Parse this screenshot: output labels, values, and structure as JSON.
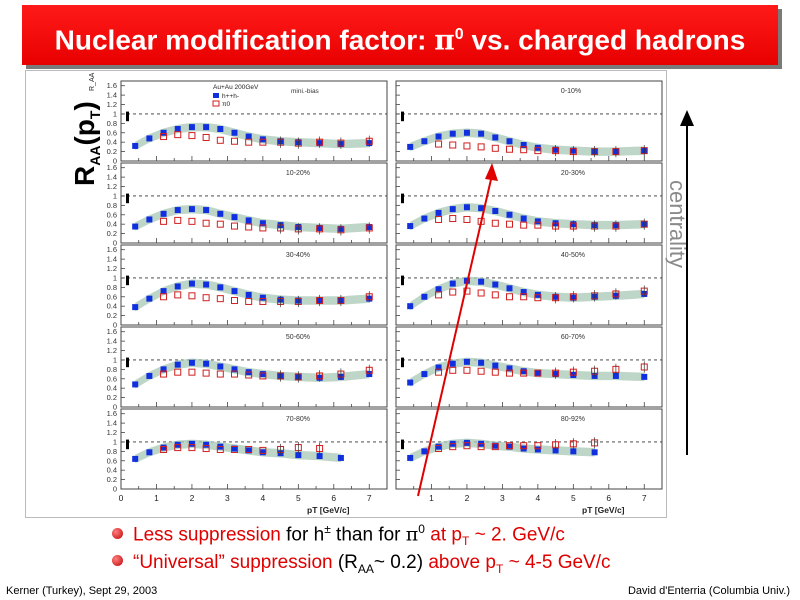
{
  "title": {
    "prefix": "Nuclear modification factor: ",
    "pi": "π",
    "pi_sup": "0",
    "suffix": " vs. charged hadrons"
  },
  "side_label": {
    "main": "R",
    "sub": "AA",
    "paren_open": "(p",
    "sub2": "T",
    "paren_close": ")"
  },
  "centrality_label": "centrality",
  "bullets": [
    {
      "red1": "Less suppression",
      "t1": " for h",
      "h_sup": "±",
      "t2": " than for ",
      "pi": "π",
      "pi_sup": "0",
      "red2": " at p",
      "red2_sub": "T",
      "red3": " ~ 2. GeV/c"
    },
    {
      "red1": "“Universal” suppression",
      "t1": " (R",
      "t1_sub": "AA",
      "t2": "~ 0.2) ",
      "red2": "above p",
      "red2_sub": "T",
      "red3": " ~ 4-5 GeV/c"
    }
  ],
  "footer": {
    "left": "Kerner (Turkey), Sept 29, 2003",
    "right": "David d'Enterria (Columbia Univ.)"
  },
  "colors": {
    "banner": "#ff0000",
    "accent_red": "#e00000",
    "charged": "#1030e0",
    "pi0": "#d02020",
    "band": "#a8c8b4"
  },
  "chart_data": {
    "type": "scatter",
    "legend": {
      "header": "Au+Au 200GeV",
      "entries": [
        "h++h-",
        "π0"
      ]
    },
    "ylabel": "R_AA",
    "xlabel": "pT [GeV/c]",
    "xlim": [
      0,
      7.5
    ],
    "ylim": [
      0,
      1.7
    ],
    "x_ticks": [
      "0",
      "1",
      "2",
      "3",
      "4",
      "5",
      "6",
      "7"
    ],
    "x_ticks_right": [
      "1",
      "2",
      "3",
      "4",
      "5",
      "6",
      "7"
    ],
    "y_ticks": [
      "0",
      "0.2",
      "0.4",
      "0.6",
      "0.8",
      "1",
      "1.2",
      "1.4",
      "1.6"
    ],
    "first_panel_extra": "mini.-bias",
    "panels": [
      {
        "label": "",
        "scale_ref": false,
        "charged": [
          [
            0.4,
            0.32
          ],
          [
            0.8,
            0.48
          ],
          [
            1.2,
            0.6
          ],
          [
            1.6,
            0.68
          ],
          [
            2.0,
            0.72
          ],
          [
            2.4,
            0.72
          ],
          [
            2.8,
            0.68
          ],
          [
            3.2,
            0.6
          ],
          [
            3.6,
            0.52
          ],
          [
            4.0,
            0.46
          ],
          [
            4.5,
            0.42
          ],
          [
            5.0,
            0.4
          ],
          [
            5.6,
            0.38
          ],
          [
            6.2,
            0.36
          ],
          [
            7.0,
            0.38
          ]
        ],
        "pi0": [
          [
            1.2,
            0.52
          ],
          [
            1.6,
            0.56
          ],
          [
            2.0,
            0.54
          ],
          [
            2.4,
            0.5
          ],
          [
            2.8,
            0.44
          ],
          [
            3.2,
            0.42
          ],
          [
            3.6,
            0.4
          ],
          [
            4.0,
            0.4
          ],
          [
            4.5,
            0.4
          ],
          [
            5.0,
            0.38
          ],
          [
            5.6,
            0.4
          ],
          [
            6.2,
            0.38
          ],
          [
            7.0,
            0.42
          ]
        ]
      },
      {
        "label": "0-10%",
        "scale_ref": false,
        "charged": [
          [
            0.4,
            0.3
          ],
          [
            0.8,
            0.42
          ],
          [
            1.2,
            0.52
          ],
          [
            1.6,
            0.58
          ],
          [
            2.0,
            0.6
          ],
          [
            2.4,
            0.58
          ],
          [
            2.8,
            0.5
          ],
          [
            3.2,
            0.42
          ],
          [
            3.6,
            0.34
          ],
          [
            4.0,
            0.28
          ],
          [
            4.5,
            0.24
          ],
          [
            5.0,
            0.22
          ],
          [
            5.6,
            0.2
          ],
          [
            6.2,
            0.2
          ],
          [
            7.0,
            0.22
          ]
        ],
        "pi0": [
          [
            1.2,
            0.36
          ],
          [
            1.6,
            0.34
          ],
          [
            2.0,
            0.32
          ],
          [
            2.4,
            0.3
          ],
          [
            2.8,
            0.27
          ],
          [
            3.2,
            0.25
          ],
          [
            3.6,
            0.24
          ],
          [
            4.0,
            0.22
          ],
          [
            4.5,
            0.22
          ],
          [
            5.0,
            0.2
          ],
          [
            5.6,
            0.2
          ],
          [
            6.2,
            0.2
          ],
          [
            7.0,
            0.22
          ]
        ]
      },
      {
        "label": "10-20%",
        "scale_ref": true,
        "charged": [
          [
            0.4,
            0.35
          ],
          [
            0.8,
            0.5
          ],
          [
            1.2,
            0.62
          ],
          [
            1.6,
            0.7
          ],
          [
            2.0,
            0.72
          ],
          [
            2.4,
            0.7
          ],
          [
            2.8,
            0.62
          ],
          [
            3.2,
            0.55
          ],
          [
            3.6,
            0.48
          ],
          [
            4.0,
            0.42
          ],
          [
            4.5,
            0.38
          ],
          [
            5.0,
            0.34
          ],
          [
            5.6,
            0.32
          ],
          [
            6.2,
            0.3
          ],
          [
            7.0,
            0.34
          ]
        ],
        "pi0": [
          [
            1.2,
            0.46
          ],
          [
            1.6,
            0.48
          ],
          [
            2.0,
            0.46
          ],
          [
            2.4,
            0.42
          ],
          [
            2.8,
            0.4
          ],
          [
            3.2,
            0.36
          ],
          [
            3.6,
            0.34
          ],
          [
            4.0,
            0.32
          ],
          [
            4.5,
            0.32
          ],
          [
            5.0,
            0.3
          ],
          [
            5.6,
            0.3
          ],
          [
            6.2,
            0.28
          ],
          [
            7.0,
            0.32
          ]
        ]
      },
      {
        "label": "20-30%",
        "scale_ref": false,
        "charged": [
          [
            0.4,
            0.36
          ],
          [
            0.8,
            0.52
          ],
          [
            1.2,
            0.64
          ],
          [
            1.6,
            0.72
          ],
          [
            2.0,
            0.76
          ],
          [
            2.4,
            0.74
          ],
          [
            2.8,
            0.68
          ],
          [
            3.2,
            0.6
          ],
          [
            3.6,
            0.52
          ],
          [
            4.0,
            0.46
          ],
          [
            4.5,
            0.42
          ],
          [
            5.0,
            0.4
          ],
          [
            5.6,
            0.38
          ],
          [
            6.2,
            0.38
          ],
          [
            7.0,
            0.4
          ]
        ],
        "pi0": [
          [
            1.2,
            0.5
          ],
          [
            1.6,
            0.52
          ],
          [
            2.0,
            0.5
          ],
          [
            2.4,
            0.46
          ],
          [
            2.8,
            0.42
          ],
          [
            3.2,
            0.4
          ],
          [
            3.6,
            0.38
          ],
          [
            4.0,
            0.38
          ],
          [
            4.5,
            0.36
          ],
          [
            5.0,
            0.36
          ],
          [
            5.6,
            0.36
          ],
          [
            6.2,
            0.36
          ],
          [
            7.0,
            0.4
          ]
        ]
      },
      {
        "label": "30-40%",
        "scale_ref": true,
        "charged": [
          [
            0.4,
            0.38
          ],
          [
            0.8,
            0.56
          ],
          [
            1.2,
            0.72
          ],
          [
            1.6,
            0.82
          ],
          [
            2.0,
            0.88
          ],
          [
            2.4,
            0.86
          ],
          [
            2.8,
            0.8
          ],
          [
            3.2,
            0.72
          ],
          [
            3.6,
            0.64
          ],
          [
            4.0,
            0.58
          ],
          [
            4.5,
            0.54
          ],
          [
            5.0,
            0.52
          ],
          [
            5.6,
            0.52
          ],
          [
            6.2,
            0.52
          ],
          [
            7.0,
            0.56
          ]
        ],
        "pi0": [
          [
            1.2,
            0.6
          ],
          [
            1.6,
            0.64
          ],
          [
            2.0,
            0.62
          ],
          [
            2.4,
            0.58
          ],
          [
            2.8,
            0.56
          ],
          [
            3.2,
            0.52
          ],
          [
            3.6,
            0.5
          ],
          [
            4.0,
            0.5
          ],
          [
            4.5,
            0.5
          ],
          [
            5.0,
            0.5
          ],
          [
            5.6,
            0.52
          ],
          [
            6.2,
            0.52
          ],
          [
            7.0,
            0.6
          ]
        ]
      },
      {
        "label": "40-50%",
        "scale_ref": false,
        "charged": [
          [
            0.4,
            0.4
          ],
          [
            0.8,
            0.6
          ],
          [
            1.2,
            0.76
          ],
          [
            1.6,
            0.88
          ],
          [
            2.0,
            0.94
          ],
          [
            2.4,
            0.92
          ],
          [
            2.8,
            0.86
          ],
          [
            3.2,
            0.78
          ],
          [
            3.6,
            0.7
          ],
          [
            4.0,
            0.64
          ],
          [
            4.5,
            0.6
          ],
          [
            5.0,
            0.58
          ],
          [
            5.6,
            0.6
          ],
          [
            6.2,
            0.62
          ],
          [
            7.0,
            0.66
          ]
        ],
        "pi0": [
          [
            1.2,
            0.64
          ],
          [
            1.6,
            0.7
          ],
          [
            2.0,
            0.72
          ],
          [
            2.4,
            0.68
          ],
          [
            2.8,
            0.64
          ],
          [
            3.2,
            0.6
          ],
          [
            3.6,
            0.6
          ],
          [
            4.0,
            0.58
          ],
          [
            4.5,
            0.58
          ],
          [
            5.0,
            0.6
          ],
          [
            5.6,
            0.62
          ],
          [
            6.2,
            0.66
          ],
          [
            7.0,
            0.72
          ]
        ]
      },
      {
        "label": "50-60%",
        "scale_ref": false,
        "charged": [
          [
            0.4,
            0.48
          ],
          [
            0.8,
            0.66
          ],
          [
            1.2,
            0.8
          ],
          [
            1.6,
            0.9
          ],
          [
            2.0,
            0.94
          ],
          [
            2.4,
            0.92
          ],
          [
            2.8,
            0.86
          ],
          [
            3.2,
            0.8
          ],
          [
            3.6,
            0.74
          ],
          [
            4.0,
            0.7
          ],
          [
            4.5,
            0.66
          ],
          [
            5.0,
            0.64
          ],
          [
            5.6,
            0.62
          ],
          [
            6.2,
            0.64
          ],
          [
            7.0,
            0.7
          ]
        ],
        "pi0": [
          [
            1.2,
            0.7
          ],
          [
            1.6,
            0.74
          ],
          [
            2.0,
            0.74
          ],
          [
            2.4,
            0.72
          ],
          [
            2.8,
            0.7
          ],
          [
            3.2,
            0.7
          ],
          [
            3.6,
            0.68
          ],
          [
            4.0,
            0.66
          ],
          [
            4.5,
            0.66
          ],
          [
            5.0,
            0.64
          ],
          [
            5.6,
            0.66
          ],
          [
            6.2,
            0.7
          ],
          [
            7.0,
            0.78
          ]
        ]
      },
      {
        "label": "60-70%",
        "scale_ref": false,
        "charged": [
          [
            0.4,
            0.52
          ],
          [
            0.8,
            0.7
          ],
          [
            1.2,
            0.84
          ],
          [
            1.6,
            0.92
          ],
          [
            2.0,
            0.96
          ],
          [
            2.4,
            0.94
          ],
          [
            2.8,
            0.88
          ],
          [
            3.2,
            0.82
          ],
          [
            3.6,
            0.76
          ],
          [
            4.0,
            0.72
          ],
          [
            4.5,
            0.7
          ],
          [
            5.0,
            0.68
          ],
          [
            5.6,
            0.66
          ],
          [
            6.2,
            0.66
          ],
          [
            7.0,
            0.64
          ]
        ],
        "pi0": [
          [
            1.2,
            0.74
          ],
          [
            1.6,
            0.78
          ],
          [
            2.0,
            0.78
          ],
          [
            2.4,
            0.76
          ],
          [
            2.8,
            0.74
          ],
          [
            3.2,
            0.72
          ],
          [
            3.6,
            0.72
          ],
          [
            4.0,
            0.72
          ],
          [
            4.5,
            0.72
          ],
          [
            5.0,
            0.74
          ],
          [
            5.6,
            0.76
          ],
          [
            6.2,
            0.8
          ],
          [
            7.0,
            0.85
          ]
        ]
      },
      {
        "label": "70-80%",
        "scale_ref": true,
        "charged": [
          [
            0.4,
            0.64
          ],
          [
            0.8,
            0.78
          ],
          [
            1.2,
            0.88
          ],
          [
            1.6,
            0.94
          ],
          [
            2.0,
            0.96
          ],
          [
            2.4,
            0.94
          ],
          [
            2.8,
            0.9
          ],
          [
            3.2,
            0.86
          ],
          [
            3.6,
            0.82
          ],
          [
            4.0,
            0.78
          ],
          [
            4.5,
            0.76
          ],
          [
            5.0,
            0.72
          ],
          [
            5.6,
            0.7
          ],
          [
            6.2,
            0.66
          ]
        ],
        "pi0": [
          [
            1.2,
            0.84
          ],
          [
            1.6,
            0.88
          ],
          [
            2.0,
            0.88
          ],
          [
            2.4,
            0.86
          ],
          [
            2.8,
            0.84
          ],
          [
            3.2,
            0.84
          ],
          [
            3.6,
            0.84
          ],
          [
            4.0,
            0.82
          ],
          [
            4.5,
            0.84
          ],
          [
            5.0,
            0.88
          ],
          [
            5.6,
            0.86
          ]
        ]
      },
      {
        "label": "80-92%",
        "scale_ref": true,
        "charged": [
          [
            0.4,
            0.66
          ],
          [
            0.8,
            0.8
          ],
          [
            1.2,
            0.9
          ],
          [
            1.6,
            0.96
          ],
          [
            2.0,
            0.98
          ],
          [
            2.4,
            0.96
          ],
          [
            2.8,
            0.92
          ],
          [
            3.2,
            0.9
          ],
          [
            3.6,
            0.86
          ],
          [
            4.0,
            0.84
          ],
          [
            4.5,
            0.82
          ],
          [
            5.0,
            0.8
          ],
          [
            5.6,
            0.78
          ]
        ],
        "pi0": [
          [
            1.2,
            0.86
          ],
          [
            1.6,
            0.9
          ],
          [
            2.0,
            0.92
          ],
          [
            2.4,
            0.9
          ],
          [
            2.8,
            0.9
          ],
          [
            3.2,
            0.92
          ],
          [
            3.6,
            0.92
          ],
          [
            4.0,
            0.92
          ],
          [
            4.5,
            0.94
          ],
          [
            5.0,
            0.96
          ],
          [
            5.6,
            0.98
          ]
        ]
      }
    ]
  }
}
